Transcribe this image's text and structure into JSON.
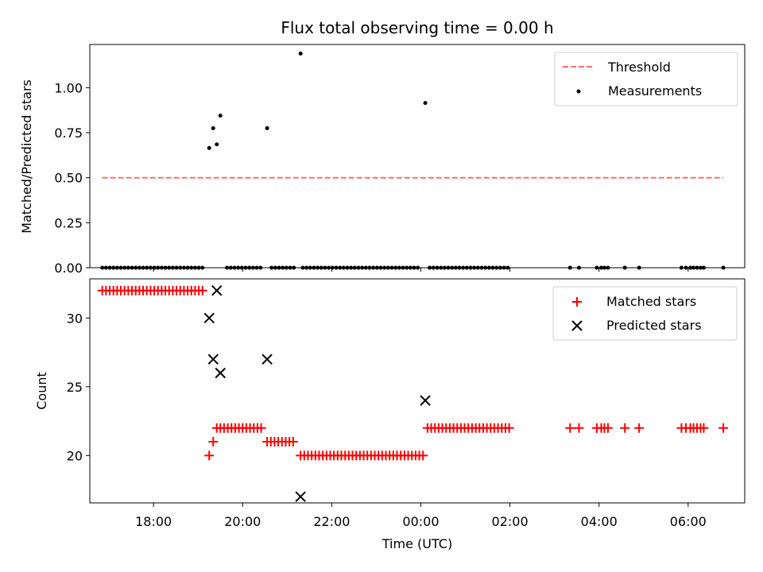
{
  "chart_data": [
    {
      "type": "line",
      "title": "Flux total observing time = 0.00 h",
      "xlabel": "",
      "ylabel": "Matched/Predicted stars",
      "xlim": [
        16.57,
        31.27
      ],
      "ylim": [
        0.0,
        1.24
      ],
      "yticks": [
        {
          "value": 0.0,
          "label": "0.00"
        },
        {
          "value": 0.25,
          "label": "0.25"
        },
        {
          "value": 0.5,
          "label": "0.50"
        },
        {
          "value": 0.75,
          "label": "0.75"
        },
        {
          "value": 1.0,
          "label": "1.00"
        }
      ],
      "xticks": [
        18,
        20,
        22,
        24,
        26,
        28,
        30
      ],
      "legend": {
        "position": "upper right",
        "entries": [
          {
            "label": "Threshold",
            "kind": "dashed-line",
            "color": "#ff7070"
          },
          {
            "label": "Measurements",
            "kind": "dot",
            "color": "#000000"
          }
        ]
      },
      "threshold": {
        "value": 0.5,
        "x_start": 16.85,
        "x_end": 30.79,
        "color": "#ff7070"
      },
      "measurements": {
        "nonzero_points": [
          {
            "x": 19.25,
            "y": 0.665
          },
          {
            "x": 19.34,
            "y": 0.775
          },
          {
            "x": 19.42,
            "y": 0.685
          },
          {
            "x": 19.5,
            "y": 0.845
          },
          {
            "x": 20.55,
            "y": 0.775
          },
          {
            "x": 21.3,
            "y": 1.19
          },
          {
            "x": 24.1,
            "y": 0.915
          }
        ],
        "zero_ranges": [
          {
            "start": 16.85,
            "end": 19.18,
            "step": 0.0833
          },
          {
            "start": 19.65,
            "end": 20.45,
            "step": 0.0833
          },
          {
            "start": 20.65,
            "end": 21.2,
            "step": 0.0833
          },
          {
            "start": 21.35,
            "end": 24.0,
            "step": 0.0833
          },
          {
            "start": 24.2,
            "end": 26.0,
            "step": 0.0833
          }
        ],
        "zero_points": [
          27.35,
          27.55,
          27.95,
          28.05,
          28.12,
          28.2,
          28.58,
          28.9,
          29.85,
          29.95,
          30.05,
          30.12,
          30.2,
          30.28,
          30.35,
          30.79
        ]
      }
    },
    {
      "type": "scatter",
      "title": "",
      "xlabel": "Time (UTC)",
      "ylabel": "Count",
      "xlim": [
        16.57,
        31.27
      ],
      "ylim": [
        16.55,
        32.85
      ],
      "yticks": [
        {
          "value": 20,
          "label": "20"
        },
        {
          "value": 25,
          "label": "25"
        },
        {
          "value": 30,
          "label": "30"
        }
      ],
      "xticks": [
        {
          "value": 18,
          "label": "18:00"
        },
        {
          "value": 20,
          "label": "20:00"
        },
        {
          "value": 22,
          "label": "22:00"
        },
        {
          "value": 24,
          "label": "00:00"
        },
        {
          "value": 26,
          "label": "02:00"
        },
        {
          "value": 28,
          "label": "04:00"
        },
        {
          "value": 30,
          "label": "06:00"
        }
      ],
      "legend": {
        "position": "upper right",
        "entries": [
          {
            "label": "Matched stars",
            "marker": "+",
            "color": "#ff0000"
          },
          {
            "label": "Predicted stars",
            "marker": "x",
            "color": "#000000"
          }
        ]
      },
      "matched_ranges": [
        {
          "start": 16.85,
          "end": 19.18,
          "step": 0.0833,
          "y": 32
        },
        {
          "start": 19.5,
          "end": 20.45,
          "step": 0.0833,
          "y": 22
        },
        {
          "start": 20.55,
          "end": 21.2,
          "step": 0.0833,
          "y": 21
        },
        {
          "start": 21.3,
          "end": 24.05,
          "step": 0.0833,
          "y": 20
        },
        {
          "start": 24.15,
          "end": 26.0,
          "step": 0.0833,
          "y": 22
        }
      ],
      "matched_points": [
        {
          "x": 19.25,
          "y": 20
        },
        {
          "x": 19.34,
          "y": 21
        },
        {
          "x": 19.42,
          "y": 22
        },
        {
          "x": 27.35,
          "y": 22
        },
        {
          "x": 27.55,
          "y": 22
        },
        {
          "x": 27.95,
          "y": 22
        },
        {
          "x": 28.05,
          "y": 22
        },
        {
          "x": 28.12,
          "y": 22
        },
        {
          "x": 28.2,
          "y": 22
        },
        {
          "x": 28.58,
          "y": 22
        },
        {
          "x": 28.9,
          "y": 22
        },
        {
          "x": 29.85,
          "y": 22
        },
        {
          "x": 29.95,
          "y": 22
        },
        {
          "x": 30.05,
          "y": 22
        },
        {
          "x": 30.12,
          "y": 22
        },
        {
          "x": 30.2,
          "y": 22
        },
        {
          "x": 30.28,
          "y": 22
        },
        {
          "x": 30.35,
          "y": 22
        },
        {
          "x": 30.79,
          "y": 22
        }
      ],
      "predicted_points": [
        {
          "x": 19.25,
          "y": 30
        },
        {
          "x": 19.34,
          "y": 27
        },
        {
          "x": 19.42,
          "y": 32
        },
        {
          "x": 19.5,
          "y": 26
        },
        {
          "x": 20.55,
          "y": 27
        },
        {
          "x": 21.3,
          "y": 17
        },
        {
          "x": 24.1,
          "y": 24
        }
      ]
    }
  ]
}
